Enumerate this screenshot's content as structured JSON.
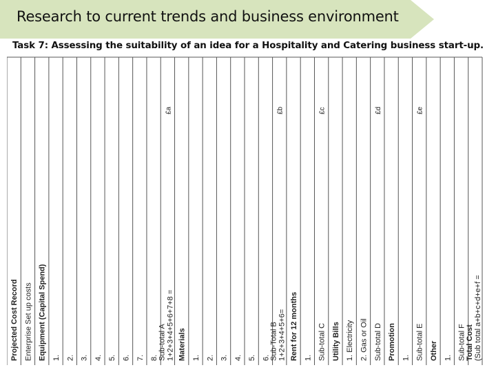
{
  "header": {
    "title": "Research to current trends and business environment",
    "subtitle": "Task 7: Assessing the suitability of an idea for a Hospitality and Catering business start-up."
  },
  "colors": {
    "banner_fill": "#d7e4bd",
    "table_lines": "#555555",
    "text": "#222222"
  },
  "record": {
    "columns": [
      {
        "label": "Projected Cost Record",
        "bold": true,
        "cost": ""
      },
      {
        "label": "Enterprise Set up costs",
        "bold": false,
        "cost": ""
      },
      {
        "label": "Equipment (Capital Spend)",
        "bold": true,
        "cost": ""
      },
      {
        "label": "1.",
        "bold": false,
        "cost": ""
      },
      {
        "label": "2.",
        "bold": false,
        "cost": ""
      },
      {
        "label": "3.",
        "bold": false,
        "cost": ""
      },
      {
        "label": "4.",
        "bold": false,
        "cost": ""
      },
      {
        "label": "5.",
        "bold": false,
        "cost": ""
      },
      {
        "label": "6.",
        "bold": false,
        "cost": ""
      },
      {
        "label": "7.",
        "bold": false,
        "cost": ""
      },
      {
        "label": "8.",
        "bold": false,
        "cost": ""
      },
      {
        "label": "Sub-total A",
        "line2": "1+2+3+4+5+6+7+8 =",
        "bold": false,
        "cost": "£a"
      },
      {
        "label": "Materials",
        "bold": true,
        "cost": ""
      },
      {
        "label": "1.",
        "bold": false,
        "cost": ""
      },
      {
        "label": "2.",
        "bold": false,
        "cost": ""
      },
      {
        "label": "3.",
        "bold": false,
        "cost": ""
      },
      {
        "label": "4.",
        "bold": false,
        "cost": ""
      },
      {
        "label": "5.",
        "bold": false,
        "cost": ""
      },
      {
        "label": "6.",
        "bold": false,
        "cost": ""
      },
      {
        "label": "Sub-Total B",
        "line2": "1+2+3+4+5+6=",
        "bold": false,
        "cost": "£b"
      },
      {
        "label": "Rent for 12 months",
        "bold": true,
        "cost": ""
      },
      {
        "label": "1.",
        "bold": false,
        "cost": ""
      },
      {
        "label": "Sub-total C",
        "bold": false,
        "cost": "£c"
      },
      {
        "label": "Utility Bills",
        "bold": true,
        "cost": ""
      },
      {
        "label": "1. Electricity",
        "bold": false,
        "cost": ""
      },
      {
        "label": "2. Gas or Oil",
        "bold": false,
        "cost": ""
      },
      {
        "label": "Sub-total D",
        "bold": false,
        "cost": "£d"
      },
      {
        "label": "Promotion",
        "bold": true,
        "cost": ""
      },
      {
        "label": "1.",
        "bold": false,
        "cost": ""
      },
      {
        "label": "Sub-total E",
        "bold": false,
        "cost": "£e"
      },
      {
        "label": "Other",
        "bold": true,
        "cost": ""
      },
      {
        "label": "1.",
        "bold": false,
        "cost": ""
      },
      {
        "label": "Sub-total F",
        "bold": false,
        "cost": ""
      },
      {
        "label": "Total Cost",
        "line2": "(Sub total a+b+c+d+e+f =",
        "bold": true,
        "cost": ""
      }
    ]
  }
}
